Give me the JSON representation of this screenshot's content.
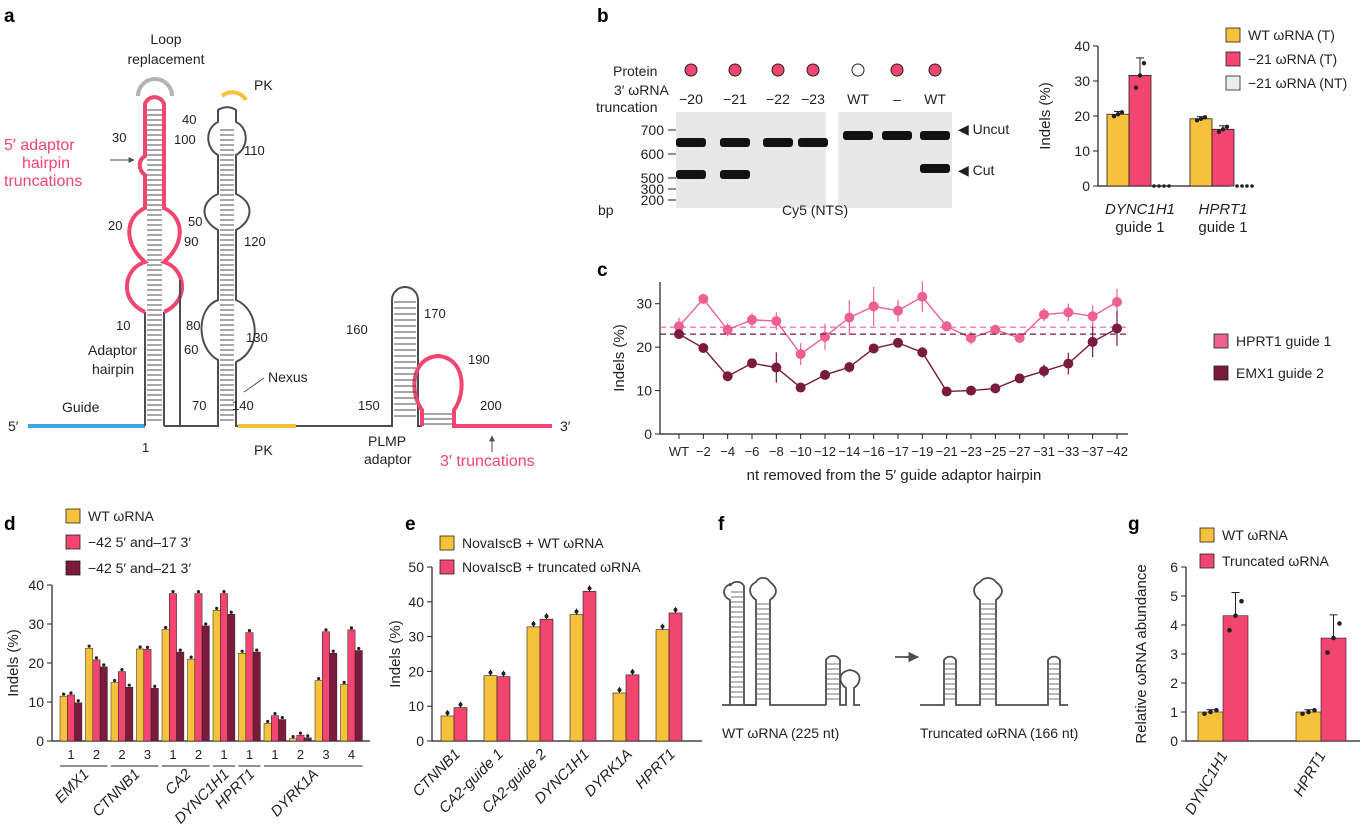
{
  "colors": {
    "yellow": "#f7c23b",
    "pink": "#f2456f",
    "maroon": "#7a1a3c",
    "lightpink": "#ec6190",
    "blue": "#3ea8e2",
    "gray": "#4d4d4d",
    "white": "#ffffff"
  },
  "panels": {
    "a": "a",
    "b": "b",
    "c": "c",
    "d": "d",
    "e": "e",
    "f": "f",
    "g": "g"
  },
  "panel_a": {
    "labels": {
      "loop_replacement_1": "Loop",
      "loop_replacement_2": "replacement",
      "pk_top": "PK",
      "pk_bottom": "PK",
      "adaptor_trunc_1": "5′ adaptor",
      "adaptor_trunc_2": "hairpin",
      "adaptor_trunc_3": "truncations",
      "adaptor_hairpin_1": "Adaptor",
      "adaptor_hairpin_2": "hairpin",
      "guide": "Guide",
      "five_prime": "5′",
      "three_prime": "3′",
      "nexus": "Nexus",
      "plmp_1": "PLMP",
      "plmp_2": "adaptor",
      "three_trunc": "3′ truncations"
    },
    "positions": {
      "p1": "1",
      "p10": "10",
      "p20": "20",
      "p30": "30",
      "p40": "40",
      "p50": "50",
      "p60": "60",
      "p70": "70",
      "p80": "80",
      "p90": "90",
      "p100": "100",
      "p110": "110",
      "p120": "120",
      "p130": "130",
      "p140": "140",
      "p150": "150",
      "p160": "160",
      "p170": "170",
      "p190": "190",
      "p200": "200"
    }
  },
  "panel_b_gel": {
    "protein_label": "Protein",
    "trunc_label_1": "3′ ωRNA",
    "trunc_label_2": "truncation",
    "lanes": [
      "−20",
      "−21",
      "−22",
      "−23",
      "WT",
      "–",
      "WT"
    ],
    "protein_present": [
      true,
      true,
      true,
      true,
      false,
      true,
      true
    ],
    "ladder": [
      "700",
      "600",
      "500",
      "300",
      "200"
    ],
    "bp_label": "bp",
    "uncut_label": "◀ Uncut",
    "cut_label": "◀ Cut",
    "stain_label": "Cy5 (NTS)"
  },
  "chart_data": [
    {
      "id": "b-bar",
      "type": "bar",
      "categories": [
        "DYNC1H1",
        "HPRT1"
      ],
      "category_sub": "guide 1",
      "ylabel": "Indels (%)",
      "ylim": [
        0,
        40
      ],
      "yticks": [
        "0",
        "10",
        "20",
        "30",
        "40"
      ],
      "series": [
        {
          "name": "WT ωRNA (T)",
          "values": [
            20.5,
            19.2
          ],
          "err": [
            0.8,
            0.6
          ],
          "color": "#f7c23b"
        },
        {
          "name": "−21 ωRNA (T)",
          "values": [
            31.6,
            16.2
          ],
          "err": [
            5,
            1
          ],
          "color": "#f2456f"
        },
        {
          "name": "−21 ωRNA (NT)",
          "values": [
            0,
            0
          ],
          "err": [
            0,
            0
          ],
          "color": "#ececec"
        }
      ],
      "legend": "right"
    },
    {
      "id": "c-line",
      "type": "line",
      "categories": [
        "WT",
        "−2",
        "−4",
        "−6",
        "−8",
        "−10",
        "−12",
        "−14",
        "−16",
        "−17",
        "−19",
        "−21",
        "−23",
        "−25",
        "−27",
        "−31",
        "−33",
        "−37",
        "−42"
      ],
      "xlabel": "nt removed from the 5′ guide adaptor hairpin",
      "ylabel": "Indels (%)",
      "ylim": [
        0,
        35
      ],
      "yticks": [
        "0",
        "10",
        "20",
        "30"
      ],
      "series": [
        {
          "name": "HPRT1 guide 1",
          "values": [
            24.8,
            31.1,
            24,
            26.3,
            26,
            18.4,
            22.4,
            26.8,
            29.4,
            28.4,
            31.6,
            24.8,
            22.1,
            24,
            22.1,
            27.5,
            28,
            27.1,
            30.4
          ],
          "err": [
            2,
            0.5,
            1.5,
            1.5,
            2,
            2.5,
            3,
            4,
            4.5,
            2.5,
            3.5,
            1,
            1.5,
            1,
            1,
            1.5,
            2,
            2.5,
            3
          ],
          "color": "#ec6190",
          "mean": 24.6
        },
        {
          "name": "EMX1 guide 2",
          "values": [
            23,
            19.8,
            13.3,
            16.3,
            15.3,
            10.7,
            13.6,
            15.4,
            19.7,
            21,
            18.8,
            9.8,
            10,
            10.5,
            12.8,
            14.5,
            16.2,
            21.2,
            24.3
          ],
          "err": [
            0.8,
            0.6,
            0.8,
            1,
            3.5,
            0.8,
            0.8,
            1.2,
            0.8,
            1,
            1.2,
            0.5,
            0.5,
            0.5,
            0.8,
            1.5,
            2.5,
            3.5,
            4
          ],
          "color": "#7a1a3c",
          "mean": 23
        }
      ],
      "legend": "right"
    },
    {
      "id": "d-bar",
      "type": "bar",
      "ylabel": "Indels (%)",
      "ylim": [
        0,
        40
      ],
      "yticks": [
        "0",
        "10",
        "20",
        "30",
        "40"
      ],
      "guides": [
        "1",
        "2",
        "2",
        "3",
        "1",
        "2",
        "1",
        "1",
        "1",
        "2",
        "3",
        "4"
      ],
      "genes": [
        {
          "name": "EMX1",
          "span": [
            0,
            1
          ]
        },
        {
          "name": "CTNNB1",
          "span": [
            2,
            3
          ]
        },
        {
          "name": "CA2",
          "span": [
            4,
            5
          ]
        },
        {
          "name": "DYNC1H1",
          "span": [
            6,
            6
          ]
        },
        {
          "name": "HPRT1",
          "span": [
            7,
            7
          ]
        },
        {
          "name": "DYRK1A",
          "span": [
            8,
            11
          ]
        }
      ],
      "series": [
        {
          "name": "WT ωRNA",
          "values": [
            11.5,
            23.8,
            15,
            23.6,
            28.6,
            21,
            33.5,
            22.5,
            4.5,
            0.6,
            15.5,
            14.5
          ],
          "color": "#f7c23b"
        },
        {
          "name": "−42 5′ and–17 3′",
          "values": [
            11.8,
            20.8,
            17.8,
            23.5,
            37.8,
            37.8,
            37.8,
            27.8,
            6.5,
            1.5,
            28,
            28.5
          ],
          "color": "#f2456f"
        },
        {
          "name": "−42 5′ and–21 3′",
          "values": [
            9.8,
            19,
            13.8,
            13.5,
            22.8,
            29.5,
            32.5,
            22.8,
            5.5,
            0.8,
            22.5,
            23.2
          ],
          "color": "#7a1a3c"
        }
      ]
    },
    {
      "id": "e-bar",
      "type": "bar",
      "categories": [
        "CTNNB1",
        "CA2-guide 1",
        "CA2-guide 2",
        "DYNC1H1",
        "DYRK1A",
        "HPRT1"
      ],
      "ylabel": "Indels (%)",
      "ylim": [
        0,
        50
      ],
      "yticks": [
        "0",
        "10",
        "20",
        "30",
        "40",
        "50"
      ],
      "series": [
        {
          "name": "NovaIscB + WT ωRNA",
          "values": [
            7.2,
            18.8,
            32.8,
            36.3,
            13.8,
            32
          ],
          "color": "#f7c23b"
        },
        {
          "name": "NovaIscB + truncated ωRNA",
          "values": [
            9.6,
            18.5,
            35,
            43,
            19,
            36.8
          ],
          "color": "#f2456f"
        }
      ]
    },
    {
      "id": "g-bar",
      "type": "bar",
      "categories": [
        "DYNC1H1",
        "HPRT1"
      ],
      "ylabel": "Relative ωRNA abundance",
      "ylim": [
        0,
        6
      ],
      "yticks": [
        "0",
        "1",
        "2",
        "3",
        "4",
        "5",
        "6"
      ],
      "series": [
        {
          "name": "WT ωRNA",
          "values": [
            1,
            1
          ],
          "color": "#f7c23b"
        },
        {
          "name": "Truncated ωRNA",
          "values": [
            4.32,
            3.55
          ],
          "color": "#f2456f"
        }
      ]
    }
  ],
  "panel_f": {
    "wt_label": "WT ωRNA (225 nt)",
    "trunc_label": "Truncated ωRNA (166 nt)"
  }
}
